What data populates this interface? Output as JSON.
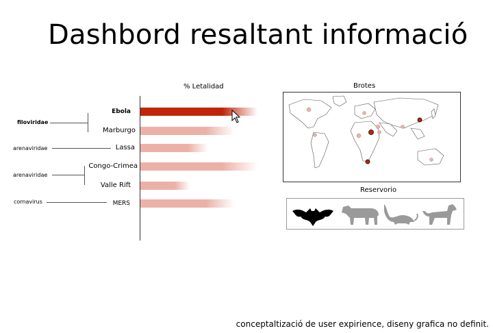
{
  "page_title": "Dashbord resaltant informació",
  "chart": {
    "title": "% Letalidad",
    "viruses": [
      {
        "name": "Ebola",
        "lethality": 0.9,
        "highlighted": true
      },
      {
        "name": "Marburgo",
        "lethality": 0.72
      },
      {
        "name": "Lassa",
        "lethality": 0.52
      },
      {
        "name": "Congo-Crimea",
        "lethality": 0.9
      },
      {
        "name": "Valle Rift",
        "lethality": 0.38
      },
      {
        "name": "MERS",
        "lethality": 0.72
      }
    ],
    "families": [
      "filoviridae",
      "arenaviridae",
      "arenaviridae",
      "cornavirus"
    ],
    "colors": {
      "highlight": "#c0250b",
      "normal": "#ebb1a7"
    }
  },
  "map": {
    "title": "Brotes"
  },
  "reservoir": {
    "title": "Reservorio",
    "animals": [
      {
        "icon": "bat-icon",
        "active": true
      },
      {
        "icon": "cow-icon",
        "active": false
      },
      {
        "icon": "rat-icon",
        "active": false
      },
      {
        "icon": "dog-icon",
        "active": false
      }
    ]
  },
  "footer": "conceptaltizació de user expirience, diseny grafica no definit."
}
